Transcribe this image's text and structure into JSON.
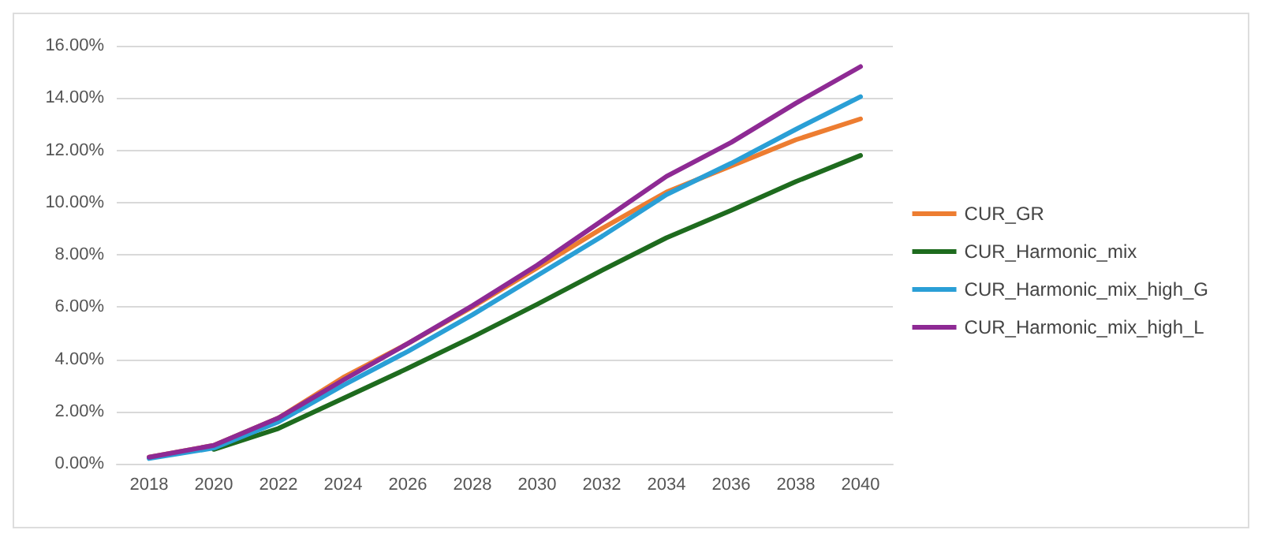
{
  "chart_data": {
    "type": "line",
    "categories": [
      "2018",
      "2020",
      "2022",
      "2024",
      "2026",
      "2028",
      "2030",
      "2032",
      "2034",
      "2036",
      "2038",
      "2040"
    ],
    "series": [
      {
        "name": "CUR_GR",
        "color": "#ed7d31",
        "values": [
          0.25,
          0.7,
          1.75,
          3.3,
          4.6,
          6.0,
          7.5,
          9.0,
          10.4,
          11.4,
          12.4,
          13.2
        ]
      },
      {
        "name": "CUR_Harmonic_mix",
        "color": "#1e6b1e",
        "values": [
          null,
          0.55,
          1.35,
          2.5,
          3.65,
          4.85,
          6.1,
          7.4,
          8.65,
          9.7,
          10.8,
          11.8
        ]
      },
      {
        "name": "CUR_Harmonic_mix_high_G",
        "color": "#2a9fd6",
        "values": [
          0.2,
          0.6,
          1.6,
          3.0,
          4.3,
          5.7,
          7.2,
          8.7,
          10.3,
          11.5,
          12.8,
          14.05
        ]
      },
      {
        "name": "CUR_Harmonic_mix_high_L",
        "color": "#8e2a94",
        "values": [
          0.25,
          0.7,
          1.75,
          3.2,
          4.6,
          6.05,
          7.6,
          9.3,
          11.0,
          12.3,
          13.8,
          15.2
        ]
      }
    ],
    "ylim": [
      0,
      16
    ],
    "yticks": [
      {
        "value": 0,
        "label": "0.00%"
      },
      {
        "value": 2,
        "label": "2.00%"
      },
      {
        "value": 4,
        "label": "4.00%"
      },
      {
        "value": 6,
        "label": "6.00%"
      },
      {
        "value": 8,
        "label": "8.00%"
      },
      {
        "value": 10,
        "label": "10.00%"
      },
      {
        "value": 12,
        "label": "12.00%"
      },
      {
        "value": 14,
        "label": "14.00%"
      },
      {
        "value": 16,
        "label": "16.00%"
      }
    ],
    "grid": "y",
    "legend": "right",
    "marker": "none",
    "line_style": "solid"
  }
}
